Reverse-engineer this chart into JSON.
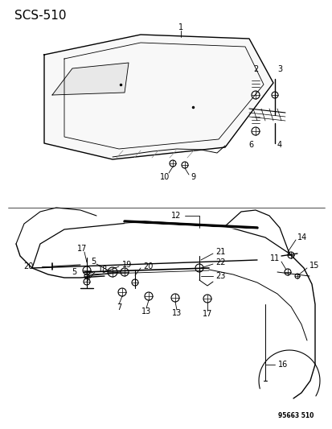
{
  "title": "SCS-510",
  "watermark": "95663 510",
  "bg_color": "#ffffff",
  "title_fontsize": 11,
  "label_fontsize": 7.0
}
